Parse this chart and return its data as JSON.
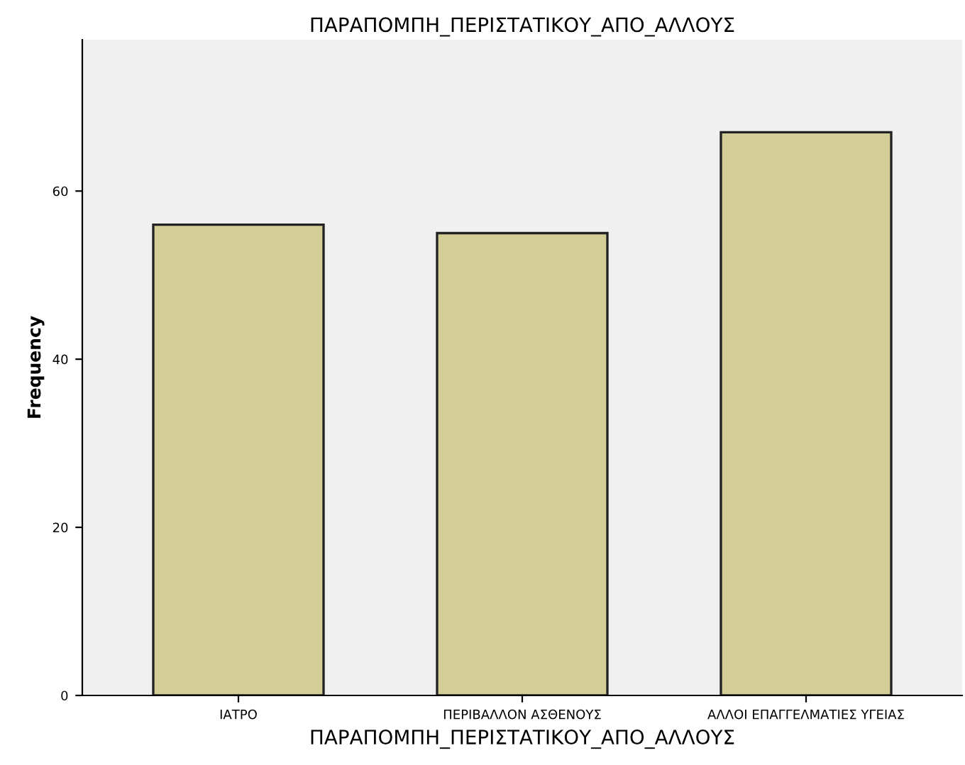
{
  "chart_data": {
    "type": "bar",
    "title": "ΠΑΡΑΠΟΜΠΗ_ΠΕΡΙΣΤΑΤΙΚΟΥ_ΑΠΟ_ΑΛΛΟΥΣ",
    "xlabel": "ΠΑΡΑΠΟΜΠΗ_ΠΕΡΙΣΤΑΤΙΚΟΥ_ΑΠΟ_ΑΛΛΟΥΣ",
    "ylabel": "Frequency",
    "categories": [
      "ΙΑΤΡΟ",
      "ΠΕΡΙΒΑΛΛΟΝ ΑΣΘΕΝΟΥΣ",
      "ΑΛΛΟΙ ΕΠΑΓΓΕΛΜΑΤΙΕΣ ΥΓΕΙΑΣ"
    ],
    "values": [
      56,
      55,
      67
    ],
    "color": "#d3ce97",
    "ylim": [
      0,
      78
    ],
    "yticks": [
      0,
      20,
      40,
      60
    ],
    "grid": false
  }
}
